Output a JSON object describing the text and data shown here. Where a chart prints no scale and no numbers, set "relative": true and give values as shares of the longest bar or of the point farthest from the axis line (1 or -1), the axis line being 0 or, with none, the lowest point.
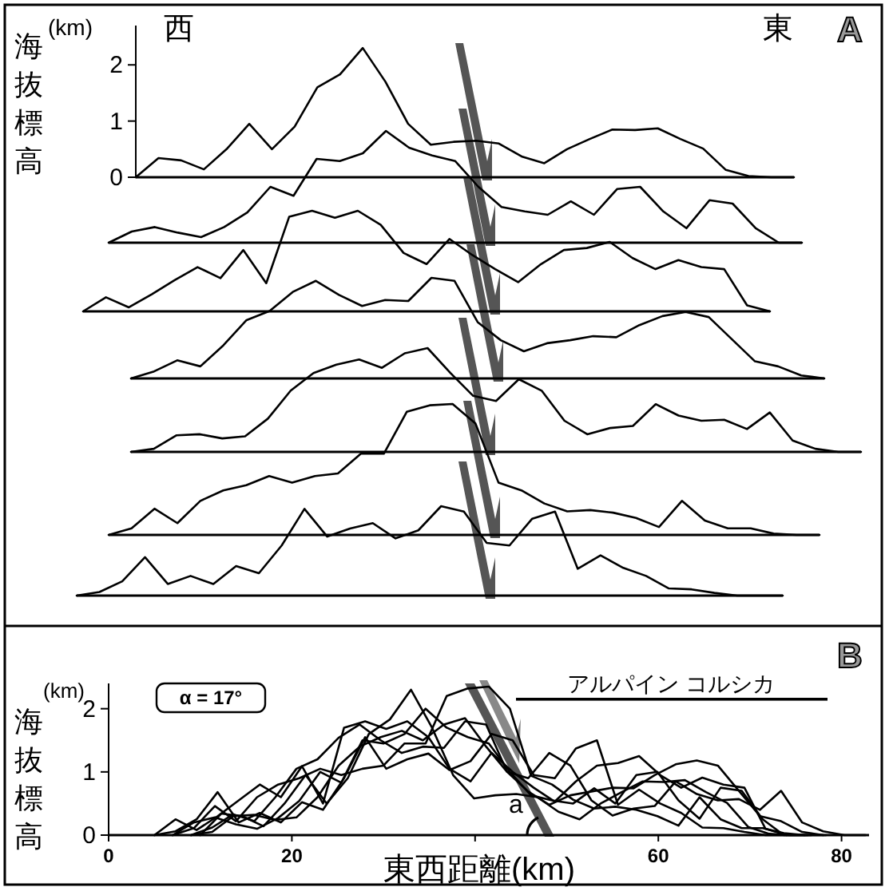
{
  "chart_data": [
    {
      "type": "line",
      "ylabel": "海抜標高",
      "annotations": [
        "(km)",
        "西",
        "東",
        "A"
      ],
      "tick_labels": "y",
      "ylim": [
        0,
        2.7
      ],
      "yticks": [
        0,
        1,
        2
      ],
      "categories": [
        null,
        null,
        null,
        null,
        null,
        null,
        null,
        null,
        null,
        null,
        null,
        null,
        null,
        null,
        null,
        null,
        null,
        null,
        null,
        null,
        null,
        null,
        null,
        null,
        null,
        null,
        null,
        null,
        null,
        null
      ],
      "series": [
        {
          "color": "#000000",
          "values": [
            0,
            0.34,
            0.3,
            0.14,
            0.5,
            0.95,
            0.5,
            0.9,
            1.6,
            1.83,
            2.3,
            1.7,
            0.95,
            0.58,
            0.63,
            0.65,
            0.6,
            0.37,
            0.25,
            0.5,
            0.68,
            0.85,
            0.84,
            0.87,
            0.68,
            0.51,
            0.13,
            0.02,
            0,
            0
          ]
        }
      ]
    },
    {
      "type": "line",
      "relative": true,
      "categories": [
        null,
        null,
        null,
        null,
        null,
        null,
        null,
        null,
        null,
        null,
        null,
        null,
        null,
        null,
        null,
        null,
        null,
        null,
        null,
        null,
        null,
        null,
        null,
        null,
        null,
        null,
        null,
        null,
        null,
        null,
        null
      ],
      "series": [
        {
          "color": "#000000",
          "values": [
            0,
            0.1,
            0.14,
            0.09,
            0.05,
            0.14,
            0.27,
            0.5,
            0.42,
            0.75,
            0.73,
            0.8,
            1,
            0.85,
            0.78,
            0.73,
            0.5,
            0.32,
            0.28,
            0.25,
            0.37,
            0.25,
            0.48,
            0.5,
            0.28,
            0.13,
            0.38,
            0.35,
            0.13,
            0,
            0
          ]
        }
      ]
    },
    {
      "type": "line",
      "relative": true,
      "categories": [
        null,
        null,
        null,
        null,
        null,
        null,
        null,
        null,
        null,
        null,
        null,
        null,
        null,
        null,
        null,
        null,
        null,
        null,
        null,
        null,
        null,
        null,
        null,
        null,
        null,
        null,
        null,
        null,
        null,
        null,
        null
      ],
      "series": [
        {
          "color": "#000000",
          "values": [
            0,
            0.14,
            0.04,
            0.17,
            0.31,
            0.44,
            0.33,
            0.61,
            0.28,
            0.94,
            1,
            0.93,
            1,
            0.86,
            0.58,
            0.47,
            0.72,
            0.56,
            0.42,
            0.29,
            0.47,
            0.61,
            0.63,
            0.69,
            0.53,
            0.42,
            0.51,
            0.44,
            0.42,
            0.06,
            0
          ]
        }
      ]
    },
    {
      "type": "line",
      "relative": true,
      "categories": [
        null,
        null,
        null,
        null,
        null,
        null,
        null,
        null,
        null,
        null,
        null,
        null,
        null,
        null,
        null,
        null,
        null,
        null,
        null,
        null,
        null,
        null,
        null,
        null,
        null,
        null,
        null,
        null,
        null,
        null,
        null
      ],
      "series": [
        {
          "color": "#000000",
          "values": [
            0,
            0.07,
            0.18,
            0.12,
            0.33,
            0.58,
            0.67,
            0.86,
            0.97,
            0.83,
            0.72,
            0.78,
            0.77,
            1,
            0.97,
            0.56,
            0.38,
            0.27,
            0.35,
            0.38,
            0.42,
            0.41,
            0.53,
            0.62,
            0.66,
            0.61,
            0.39,
            0.17,
            0.12,
            0.03,
            0
          ]
        }
      ]
    },
    {
      "type": "line",
      "relative": true,
      "categories": [
        null,
        null,
        null,
        null,
        null,
        null,
        null,
        null,
        null,
        null,
        null,
        null,
        null,
        null,
        null,
        null,
        null,
        null,
        null,
        null,
        null,
        null,
        null,
        null,
        null,
        null,
        null,
        null,
        null,
        null,
        null,
        null,
        null
      ],
      "series": [
        {
          "color": "#000000",
          "values": [
            0,
            0.03,
            0.16,
            0.17,
            0.13,
            0.15,
            0.32,
            0.59,
            0.76,
            0.84,
            0.89,
            0.81,
            0.95,
            1,
            0.76,
            0.54,
            0.49,
            0.7,
            0.59,
            0.3,
            0.17,
            0.23,
            0.25,
            0.46,
            0.35,
            0.3,
            0.31,
            0.22,
            0.38,
            0.11,
            0.03,
            0,
            0
          ]
        }
      ]
    },
    {
      "type": "line",
      "relative": true,
      "categories": [
        null,
        null,
        null,
        null,
        null,
        null,
        null,
        null,
        null,
        null,
        null,
        null,
        null,
        null,
        null,
        null,
        null,
        null,
        null,
        null,
        null,
        null,
        null,
        null,
        null,
        null,
        null,
        null,
        null,
        null,
        null,
        null
      ],
      "series": [
        {
          "color": "#000000",
          "values": [
            0,
            0.05,
            0.2,
            0.09,
            0.26,
            0.34,
            0.38,
            0.45,
            0.4,
            0.45,
            0.47,
            0.62,
            0.62,
            0.94,
            0.99,
            1,
            0.85,
            0.4,
            0.34,
            0.24,
            0.18,
            0.19,
            0.17,
            0.13,
            0.06,
            0.26,
            0.11,
            0.05,
            0.05,
            0.01,
            0,
            0
          ]
        }
      ]
    },
    {
      "type": "line",
      "relative": true,
      "categories": [
        null,
        null,
        null,
        null,
        null,
        null,
        null,
        null,
        null,
        null,
        null,
        null,
        null,
        null,
        null,
        null,
        null,
        null,
        null,
        null,
        null,
        null,
        null,
        null,
        null,
        null,
        null,
        null,
        null,
        null,
        null,
        null
      ],
      "series": [
        {
          "color": "#000000",
          "values": [
            0,
            0.04,
            0.16,
            0.43,
            0.13,
            0.22,
            0.13,
            0.33,
            0.25,
            0.56,
            0.97,
            0.66,
            0.75,
            0.81,
            0.64,
            0.73,
            1,
            0.94,
            0.59,
            0.56,
            0.86,
            0.94,
            0.3,
            0.45,
            0.31,
            0.22,
            0.08,
            0.07,
            0.03,
            0,
            0,
            0
          ]
        }
      ]
    },
    {
      "type": "line",
      "title": "B",
      "xlabel": "東西距離(km)",
      "ylabel": "海抜標高",
      "annotations": [
        "(km)",
        "α = 17°",
        "a",
        "アルパイン コルシカ"
      ],
      "xlim": [
        0,
        83
      ],
      "xticks": [
        0,
        20,
        {
          "value": 40,
          "label": null
        },
        60,
        80
      ],
      "ylim": [
        0,
        2.4
      ],
      "yticks": [
        0,
        1,
        2
      ],
      "series": [
        {
          "color": "#000000",
          "x": [
            10,
            12.3,
            14.6,
            16.9,
            19.2,
            21.5,
            23.8,
            26.1,
            28.4,
            30.7,
            33,
            35.3,
            37.6,
            39.9,
            42.2,
            44.5,
            46.8,
            49.1,
            51.4,
            53.7,
            56,
            58.3,
            60.6,
            62.9,
            65.2,
            67.5,
            69.8,
            72.1,
            74.4,
            76.7
          ],
          "values": [
            0,
            0.34,
            0.3,
            0.14,
            0.5,
            0.95,
            0.5,
            0.9,
            1.6,
            1.83,
            2.3,
            1.7,
            0.95,
            0.58,
            0.63,
            0.65,
            0.6,
            0.37,
            0.25,
            0.5,
            0.68,
            0.85,
            0.84,
            0.87,
            0.68,
            0.51,
            0.13,
            0.02,
            0,
            0
          ]
        },
        {
          "color": "#000000",
          "x": [
            7,
            9.3,
            11.6,
            13.9,
            16.2,
            18.5,
            20.8,
            23.1,
            25.4,
            27.7,
            30,
            32.3,
            34.6,
            36.9,
            39.2,
            41.5,
            43.8,
            46.1,
            48.4,
            50.7,
            53,
            55.3,
            57.6,
            59.9,
            62.2,
            64.5,
            66.8,
            69.1,
            71.4,
            73.7,
            76
          ],
          "values": [
            0,
            0.2,
            0.28,
            0.17,
            0.1,
            0.27,
            0.54,
            1.0,
            0.83,
            1.5,
            1.45,
            1.6,
            2.0,
            1.7,
            1.55,
            1.45,
            1.0,
            0.63,
            0.55,
            0.5,
            0.74,
            0.5,
            0.95,
            1.0,
            0.55,
            0.26,
            0.75,
            0.7,
            0.25,
            0,
            0
          ]
        },
        {
          "color": "#000000",
          "x": [
            5,
            7.3,
            9.6,
            11.9,
            14.2,
            16.5,
            18.8,
            21.1,
            23.4,
            25.7,
            28,
            30.3,
            32.6,
            34.9,
            37.2,
            39.5,
            41.8,
            44.1,
            46.4,
            48.7,
            51,
            53.3,
            55.6,
            57.9,
            60.2,
            62.5,
            64.8,
            67.1,
            69.4,
            71.7,
            74
          ],
          "values": [
            0,
            0.25,
            0.08,
            0.3,
            0.55,
            0.8,
            0.6,
            1.09,
            0.5,
            1.7,
            1.8,
            1.68,
            1.8,
            1.55,
            1.05,
            0.85,
            1.3,
            1.0,
            0.75,
            0.53,
            0.85,
            1.1,
            1.14,
            1.25,
            0.95,
            0.75,
            0.91,
            0.8,
            0.75,
            0.1,
            0
          ]
        },
        {
          "color": "#000000",
          "x": [
            9,
            11.3,
            13.6,
            15.9,
            18.2,
            20.5,
            22.8,
            25.1,
            27.4,
            29.7,
            32,
            34.3,
            36.6,
            38.9,
            41.2,
            43.5,
            45.8,
            48.1,
            50.4,
            52.7,
            55,
            57.3,
            59.6,
            61.9,
            64.2,
            66.5,
            68.8,
            71.1,
            73.4,
            75.7,
            78
          ],
          "values": [
            0,
            0.12,
            0.33,
            0.22,
            0.6,
            1.05,
            1.2,
            1.54,
            1.75,
            1.5,
            1.3,
            1.4,
            1.38,
            1.8,
            1.75,
            1.0,
            0.69,
            0.48,
            0.63,
            0.69,
            0.75,
            0.74,
            0.95,
            1.12,
            1.18,
            1.1,
            0.7,
            0.3,
            0.22,
            0.05,
            0
          ]
        },
        {
          "color": "#000000",
          "x": [
            9,
            11.3,
            13.6,
            15.9,
            18.2,
            20.5,
            22.8,
            25.1,
            27.4,
            29.7,
            32,
            34.3,
            36.6,
            38.9,
            41.2,
            43.5,
            45.8,
            48.1,
            50.4,
            52.7,
            55,
            57.3,
            59.6,
            61.9,
            64.2,
            66.5,
            68.8,
            71.1,
            73.4,
            75.7,
            78,
            80.3,
            82.6
          ],
          "values": [
            0,
            0.05,
            0.3,
            0.32,
            0.24,
            0.28,
            0.6,
            1.1,
            1.4,
            1.55,
            1.65,
            1.5,
            1.75,
            1.85,
            1.4,
            1.0,
            0.9,
            1.3,
            1.1,
            0.55,
            0.31,
            0.42,
            0.46,
            0.85,
            0.65,
            0.55,
            0.57,
            0.4,
            0.7,
            0.2,
            0.06,
            0,
            0
          ]
        },
        {
          "color": "#000000",
          "x": [
            7,
            9.3,
            11.6,
            13.9,
            16.2,
            18.5,
            20.8,
            23.1,
            25.4,
            27.7,
            30,
            32.3,
            34.6,
            36.9,
            39.2,
            41.5,
            43.8,
            46.1,
            48.4,
            50.7,
            53,
            55.3,
            57.6,
            59.9,
            62.2,
            64.5,
            66.8,
            69.1,
            71.4,
            73.7,
            76,
            78.3
          ],
          "values": [
            0,
            0.11,
            0.46,
            0.22,
            0.6,
            0.8,
            0.9,
            1.05,
            0.95,
            1.05,
            1.1,
            1.45,
            1.45,
            2.2,
            2.32,
            2.35,
            2.0,
            0.94,
            0.8,
            0.56,
            0.42,
            0.45,
            0.4,
            0.3,
            0.15,
            0.6,
            0.25,
            0.11,
            0.11,
            0.03,
            0,
            0
          ]
        },
        {
          "color": "#000000",
          "x": [
            5,
            7.3,
            9.6,
            11.9,
            14.2,
            16.5,
            18.8,
            21.1,
            23.4,
            25.7,
            28,
            30.3,
            32.6,
            34.9,
            37.2,
            39.5,
            41.8,
            44.1,
            46.4,
            48.7,
            51,
            53.3,
            55.6,
            57.9,
            60.2,
            62.5,
            64.8,
            67.1,
            69.4,
            71.7,
            74,
            76.3
          ],
          "values": [
            0,
            0.06,
            0.25,
            0.68,
            0.2,
            0.35,
            0.2,
            0.52,
            0.4,
            0.9,
            1.55,
            1.05,
            1.2,
            1.29,
            1.03,
            1.17,
            1.6,
            1.5,
            0.95,
            0.9,
            1.37,
            1.5,
            0.48,
            0.72,
            0.5,
            0.35,
            0.12,
            0.11,
            0.05,
            0,
            0,
            0
          ]
        }
      ]
    }
  ]
}
